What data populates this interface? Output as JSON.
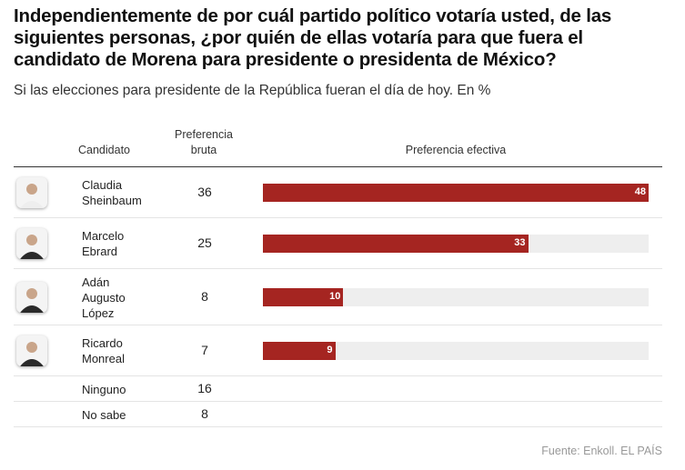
{
  "title": "Independientemente de por cuál partido político votaría usted, de las siguientes personas, ¿por quién de ellas votaría para que fuera el candidato de Morena para presidente o presidenta de México?",
  "subtitle": "Si las elecciones para presidente de la República fueran el día de hoy. En %",
  "headers": {
    "candidato": "Candidato",
    "bruta": "Preferencia bruta",
    "efectiva": "Preferencia efectiva"
  },
  "source": "Fuente: Enkoll. EL PAÍS",
  "colors": {
    "bar": "#a52521",
    "track": "#eeeeee"
  },
  "chart_data": {
    "type": "bar",
    "categories": [
      "Claudia Sheinbaum",
      "Marcelo Ebrard",
      "Adán Augusto López",
      "Ricardo Monreal",
      "Ninguno",
      "No sabe"
    ],
    "series": [
      {
        "name": "Preferencia bruta",
        "values": [
          36,
          25,
          8,
          7,
          16,
          8
        ]
      },
      {
        "name": "Preferencia efectiva",
        "values": [
          48,
          33,
          10,
          9,
          null,
          null
        ]
      }
    ],
    "xlim": [
      0,
      48
    ]
  },
  "rows": [
    {
      "name": "Claudia Sheinbaum",
      "bruta": "36",
      "efectiva": "48",
      "photo": "person-photo"
    },
    {
      "name": "Marcelo Ebrard",
      "bruta": "25",
      "efectiva": "33",
      "photo": "person-photo"
    },
    {
      "name": "Adán Augusto López",
      "bruta": "8",
      "efectiva": "10",
      "photo": "person-photo"
    },
    {
      "name": "Ricardo Monreal",
      "bruta": "7",
      "efectiva": "9",
      "photo": "person-photo"
    },
    {
      "name": "Ninguno",
      "bruta": "16"
    },
    {
      "name": "No sabe",
      "bruta": "8"
    }
  ]
}
